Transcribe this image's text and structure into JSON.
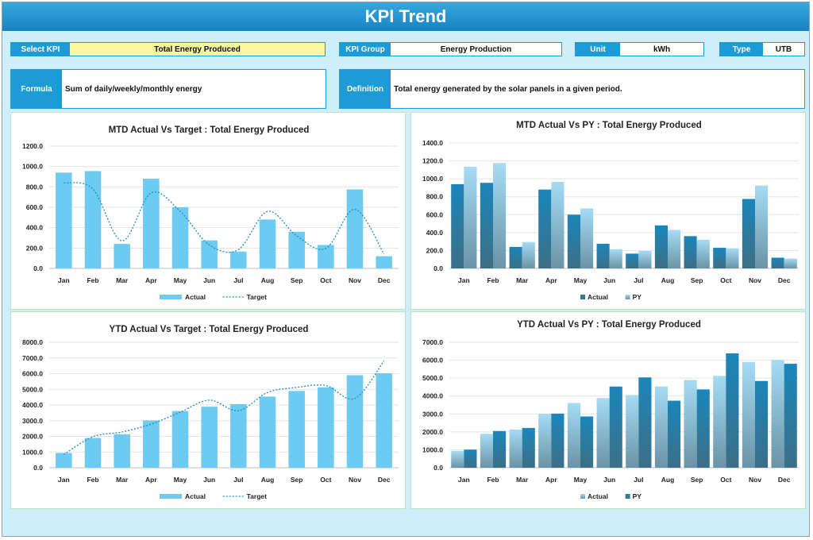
{
  "header": {
    "title": "KPI Trend"
  },
  "selectors": {
    "select_kpi": {
      "label": "Select KPI",
      "value": "Total Energy Produced"
    },
    "kpi_group": {
      "label": "KPI Group",
      "value": "Energy Production"
    },
    "unit": {
      "label": "Unit",
      "value": "kWh"
    },
    "type": {
      "label": "Type",
      "value": "UTB"
    }
  },
  "info": {
    "formula": {
      "label": "Formula",
      "value": "Sum of daily/weekly/monthly energy"
    },
    "definition": {
      "label": "Definition",
      "value": "Total energy generated by the solar panels in a given period."
    }
  },
  "colors": {
    "actual": "#6dcaf0",
    "target": "#1b8fc4",
    "actual_dark": "#1a7fae",
    "py": "#93d6f2"
  },
  "chart_data": [
    {
      "id": "mtd-target",
      "type": "bar",
      "title": "MTD Actual Vs Target : Total Energy Produced",
      "categories": [
        "Jan",
        "Feb",
        "Mar",
        "Apr",
        "May",
        "Jun",
        "Jul",
        "Aug",
        "Sep",
        "Oct",
        "Nov",
        "Dec"
      ],
      "series": [
        {
          "name": "Actual",
          "kind": "bar",
          "values": [
            940,
            955,
            240,
            880,
            600,
            275,
            165,
            480,
            360,
            230,
            775,
            120
          ]
        },
        {
          "name": "Target",
          "kind": "line",
          "values": [
            840,
            780,
            270,
            740,
            560,
            230,
            185,
            560,
            320,
            195,
            580,
            140
          ]
        }
      ],
      "ylim": [
        0,
        1200
      ],
      "yticks": [
        0,
        200,
        400,
        600,
        800,
        1000,
        1200
      ],
      "ytick_labels": [
        "0.0",
        "200.0",
        "400.0",
        "600.0",
        "800.0",
        "1000.0",
        "1200.0"
      ],
      "grid": true,
      "legend": "bottom"
    },
    {
      "id": "mtd-py",
      "type": "bar",
      "title": "MTD Actual Vs PY : Total Energy Produced",
      "categories": [
        "Jan",
        "Feb",
        "Mar",
        "Apr",
        "May",
        "Jun",
        "Jul",
        "Aug",
        "Sep",
        "Oct",
        "Nov",
        "Dec"
      ],
      "series": [
        {
          "name": "Actual",
          "kind": "bar",
          "values": [
            940,
            955,
            240,
            880,
            600,
            275,
            165,
            480,
            360,
            230,
            775,
            120
          ]
        },
        {
          "name": "PY",
          "kind": "bar",
          "values": [
            1135,
            1175,
            295,
            965,
            670,
            215,
            195,
            430,
            320,
            225,
            925,
            110
          ]
        }
      ],
      "ylim": [
        0,
        1400
      ],
      "yticks": [
        0,
        200,
        400,
        600,
        800,
        1000,
        1200,
        1400
      ],
      "ytick_labels": [
        "0.0",
        "200.0",
        "400.0",
        "600.0",
        "800.0",
        "1000.0",
        "1200.0",
        "1400.0"
      ],
      "grid": true,
      "legend": "bottom"
    },
    {
      "id": "ytd-target",
      "type": "bar",
      "title": "YTD Actual Vs Target : Total Energy Produced",
      "categories": [
        "Jan",
        "Feb",
        "Mar",
        "Apr",
        "May",
        "Jun",
        "Jul",
        "Aug",
        "Sep",
        "Oct",
        "Nov",
        "Dec"
      ],
      "series": [
        {
          "name": "Actual",
          "kind": "bar",
          "values": [
            940,
            1895,
            2135,
            3015,
            3615,
            3890,
            4055,
            4535,
            4895,
            5125,
            5900,
            6020
          ]
        },
        {
          "name": "Target",
          "kind": "line",
          "values": [
            840,
            1980,
            2280,
            2780,
            3540,
            4310,
            3640,
            4800,
            5120,
            5240,
            4420,
            6820
          ]
        }
      ],
      "ylim": [
        0,
        8000
      ],
      "yticks": [
        0,
        1000,
        2000,
        3000,
        4000,
        5000,
        6000,
        7000,
        8000
      ],
      "ytick_labels": [
        "0.0",
        "1000.0",
        "2000.0",
        "3000.0",
        "4000.0",
        "5000.0",
        "6000.0",
        "7000.0",
        "8000.0"
      ],
      "grid": true,
      "legend": "bottom"
    },
    {
      "id": "ytd-py",
      "type": "bar",
      "title": "YTD Actual Vs PY : Total Energy Produced",
      "categories": [
        "Jan",
        "Feb",
        "Mar",
        "Apr",
        "May",
        "Jun",
        "Jul",
        "Aug",
        "Sep",
        "Oct",
        "Nov",
        "Dec"
      ],
      "series": [
        {
          "name": "Actual",
          "kind": "bar",
          "values": [
            940,
            1895,
            2135,
            3015,
            3615,
            3890,
            4055,
            4535,
            4895,
            5125,
            5900,
            6020
          ]
        },
        {
          "name": "PY",
          "kind": "bar",
          "values": [
            1010,
            2050,
            2220,
            3020,
            2860,
            4530,
            5040,
            3740,
            4370,
            6380,
            4840,
            5800
          ]
        }
      ],
      "ylim": [
        0,
        7000
      ],
      "yticks": [
        0,
        1000,
        2000,
        3000,
        4000,
        5000,
        6000,
        7000
      ],
      "ytick_labels": [
        "0.0",
        "1000.0",
        "2000.0",
        "3000.0",
        "4000.0",
        "5000.0",
        "6000.0",
        "7000.0"
      ],
      "grid": true,
      "legend": "bottom"
    }
  ]
}
